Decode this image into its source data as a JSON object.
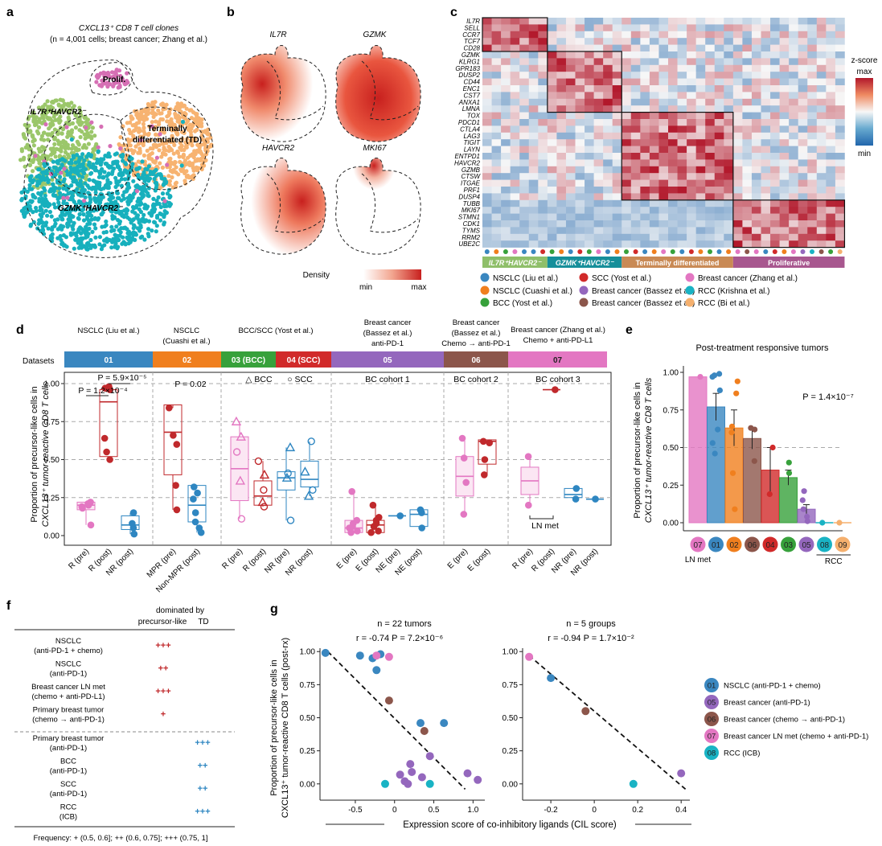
{
  "colors": {
    "d01": "#3a87c0",
    "d02": "#f07f1e",
    "d03": "#37a13b",
    "d04": "#d12a2a",
    "d05": "#9467bd",
    "d06": "#8c564b",
    "d07": "#e377c2",
    "d08": "#19b3c4",
    "d09": "#f5b06e",
    "precursor": "#c0292c",
    "td": "#2e86c1",
    "umap_green": "#9bc76a",
    "umap_teal": "#17b0bd",
    "umap_orange": "#f7b371",
    "umap_pink": "#d66fb4",
    "dens_low": "#fbe3dc",
    "dens_high": "#c8201e",
    "z_low": "#2166ac",
    "z_mid": "#f7f7f7",
    "z_high": "#b2182b"
  },
  "panel_a": {
    "letter": "a",
    "title_line1": "CXCL13⁺ CD8 T cell clones",
    "title_line2": "(n = 4,001 cells; breast cancer; Zhang et al.)",
    "labels": {
      "prolif": "Prolif.",
      "il7r": "IL7R⁺HAVCR2⁻",
      "td_line1": "Terminally",
      "td_line2": "differentiated (TD)",
      "gzmk": "GZMK⁺HAVCR2⁻"
    }
  },
  "panel_b": {
    "letter": "b",
    "genes": [
      "IL7R",
      "GZMK",
      "HAVCR2",
      "MKI67"
    ],
    "legend": {
      "title": "Density",
      "min": "min",
      "max": "max"
    }
  },
  "panel_c": {
    "letter": "c",
    "genes": [
      "IL7R",
      "SELL",
      "CCR7",
      "TCF7",
      "CD28",
      "GZMK",
      "KLRG1",
      "GPR183",
      "DUSP2",
      "CD44",
      "ENC1",
      "CST7",
      "ANXA1",
      "LMNA",
      "TOX",
      "PDCD1",
      "CTLA4",
      "LAG3",
      "TIGIT",
      "LAYN",
      "ENTPD1",
      "HAVCR2",
      "GZMB",
      "CTSW",
      "ITGAE",
      "PRF1",
      "DUSP4",
      "TUBB",
      "MKI67",
      "STMN1",
      "CDK1",
      "TYMS",
      "RRM2",
      "UBE2C"
    ],
    "column_datasets": [
      1,
      2,
      3,
      7,
      1,
      1,
      4,
      3,
      2,
      1,
      4,
      3,
      7,
      1,
      2,
      3,
      4,
      1,
      2,
      7,
      3,
      1,
      4,
      2,
      3,
      1,
      2,
      7,
      6,
      7,
      1,
      4,
      2,
      7,
      5,
      8,
      6,
      3,
      9
    ],
    "groups": [
      {
        "label": "IL7R⁺HAVCR2⁻",
        "color": "#8fbf6a"
      },
      {
        "label": "GZMK⁺HAVCR2⁻",
        "color": "#168f9a"
      },
      {
        "label": "Terminally differentiated",
        "color": "#c98a55"
      },
      {
        "label": "Proliferative",
        "color": "#a8578f"
      }
    ],
    "zscore": {
      "title": "z-score",
      "max": "max",
      "min": "min"
    },
    "legend": [
      {
        "label": "NSCLC (Liu et al.)",
        "ds": 1
      },
      {
        "label": "SCC (Yost et al.)",
        "ds": 4
      },
      {
        "label": "Breast cancer (Zhang et al.)",
        "ds": 7
      },
      {
        "label": "NSCLC (Cuashi et al.)",
        "ds": 2
      },
      {
        "label": "Breast cancer (Bassez et al.)",
        "ds": 5
      },
      {
        "label": "RCC (Krishna et al.)",
        "ds": 8
      },
      {
        "label": "BCC (Yost et al.)",
        "ds": 3
      },
      {
        "label": "Breast cancer (Bassez et al.)",
        "ds": 6
      },
      {
        "label": "RCC (Bi et al.)",
        "ds": 9
      }
    ]
  },
  "panel_d": {
    "letter": "d",
    "datasets_label": "Datasets",
    "ylabel_line1": "Proportion of precursor-like cells in",
    "ylabel_line2": "CXCL13⁺ tumor-reactive CD8 T cells",
    "headers": [
      {
        "l1": "NSCLC (Liu et al.)",
        "l2": "",
        "l3": ""
      },
      {
        "l1": "NSCLC",
        "l2": "(Cuashi et al.)",
        "l3": ""
      },
      {
        "l1": "BCC/SCC (Yost et al.)",
        "l2": "",
        "l3": ""
      },
      {
        "l1": "Breast cancer",
        "l2": "(Bassez et al.)",
        "l3": "anti-PD-1"
      },
      {
        "l1": "Breast cancer",
        "l2": "(Bassez et al.)",
        "l3": "Chemo → anti-PD-1"
      },
      {
        "l1": "Breast cancer (Zhang et al.)",
        "l2": "Chemo + anti-PD-L1",
        "l3": ""
      }
    ],
    "bar_labels": [
      "01",
      "02",
      "03 (BCC)",
      "04 (SCC)",
      "05",
      "06",
      "07"
    ],
    "sub_labels": {
      "bcc": "△ BCC",
      "scc": "○ SCC",
      "c1": "BC cohort 1",
      "c2": "BC cohort 2",
      "c3": "BC cohort 3",
      "lnmet": "LN met"
    },
    "pvalues": {
      "p1": "P = 5.9×10⁻⁵",
      "p2": "P = 1.2×10⁻⁴",
      "p3": "P = 0.02"
    },
    "yticks": [
      "0.00",
      "0.25",
      "0.50",
      "0.75",
      "1.00"
    ]
  },
  "panel_e": {
    "letter": "e",
    "title": "Post-treatment responsive tumors",
    "ylabel_line1": "Proportion of precursor-like cells in",
    "ylabel_line2": "CXCL13⁺ tumor-reactive CD8 T cells",
    "pvalue": "P = 1.4×10⁻⁷",
    "lnmet": "LN met",
    "rcc": "RCC",
    "yticks": [
      "0.00",
      "0.25",
      "0.50",
      "0.75",
      "1.00"
    ]
  },
  "panel_f": {
    "letter": "f",
    "header_l1": "dominated by",
    "header_precursor": "precursor-like",
    "header_td": "TD",
    "rows": [
      {
        "l1": "NSCLC",
        "l2": "(anti-PD-1 + chemo)",
        "mark": "+++",
        "side": "p"
      },
      {
        "l1": "NSCLC",
        "l2": "(anti-PD-1)",
        "mark": "++",
        "side": "p"
      },
      {
        "l1": "Breast cancer LN met",
        "l2": "(chemo + anti-PD-L1)",
        "mark": "+++",
        "side": "p"
      },
      {
        "l1": "Primary breast tumor",
        "l2": "(chemo → anti-PD-1)",
        "mark": "+",
        "side": "p"
      },
      {
        "l1": "Primary breast tumor",
        "l2": "(anti-PD-1)",
        "mark": "+++",
        "side": "t"
      },
      {
        "l1": "BCC",
        "l2": "(anti-PD-1)",
        "mark": "++",
        "side": "t"
      },
      {
        "l1": "SCC",
        "l2": "(anti-PD-1)",
        "mark": "++",
        "side": "t"
      },
      {
        "l1": "RCC",
        "l2": "(ICB)",
        "mark": "+++",
        "side": "t"
      }
    ],
    "footer": "Frequency: + (0.5, 0.6]; ++ (0.6, 0.75]; +++ (0.75, 1]"
  },
  "panel_g": {
    "letter": "g",
    "ylabel_line1": "Proportion of precursor-like cells in",
    "ylabel_line2": "CXCL13⁺ tumor-reactive CD8 T cells (post-rx)",
    "xlabel": "Expression score of co-inhibitory ligands (CIL score)",
    "left": {
      "title": "n = 22 tumors",
      "stat": "r = -0.74   P = 7.2×10⁻⁶",
      "xticks": [
        "-0.5",
        "0",
        "0.5",
        "1.0"
      ]
    },
    "right": {
      "title": "n = 5 groups",
      "stat": "r = -0.94   P = 1.7×10⁻²",
      "xticks": [
        "-0.2",
        "0",
        "0.2",
        "0.4"
      ]
    },
    "yticks": [
      "0.00",
      "0.25",
      "0.50",
      "0.75",
      "1.00"
    ],
    "legend": [
      {
        "code": "01",
        "label": "NSCLC (anti-PD-1 + chemo)",
        "ds": 1
      },
      {
        "code": "05",
        "label": "Breast cancer (anti-PD-1)",
        "ds": 5
      },
      {
        "code": "06",
        "label": "Breast cancer (chemo → anti-PD-1)",
        "ds": 6
      },
      {
        "code": "07",
        "label": "Breast cancer LN met (chemo + anti-PD-1)",
        "ds": 7
      },
      {
        "code": "08",
        "label": "RCC (ICB)",
        "ds": 8
      }
    ]
  },
  "chart_data": [
    {
      "type": "box",
      "panel": "d",
      "ylim": [
        0,
        1
      ],
      "groups": [
        {
          "label": "R (pre)",
          "dataset": "01",
          "values": [
            0.19,
            0.2,
            0.21,
            0.22,
            0.18,
            0.07
          ],
          "box": [
            0.17,
            0.2,
            0.22
          ]
        },
        {
          "label": "R (post)",
          "dataset": "01",
          "values": [
            0.98,
            0.97,
            0.96,
            0.64,
            0.55,
            0.5
          ],
          "box": [
            0.52,
            0.88,
            0.96
          ]
        },
        {
          "label": "NR (post)",
          "dataset": "01",
          "values": [
            0.15,
            0.08,
            0.05,
            0.01
          ],
          "box": [
            0.04,
            0.07,
            0.13
          ]
        },
        {
          "label": "MPR (pre)",
          "dataset": "02",
          "values": [
            0.84,
            0.66,
            0.6,
            0.33,
            0.17
          ],
          "box": [
            0.4,
            0.68,
            0.86
          ]
        },
        {
          "label": "Non-MPR (post)",
          "dataset": "02",
          "values": [
            0.32,
            0.24,
            0.15,
            0.09,
            0.05,
            0.02,
            0.28
          ],
          "box": [
            0.09,
            0.2,
            0.33
          ]
        },
        {
          "label": "R (pre)",
          "dataset": "03/04",
          "values": [
            0.75,
            0.55,
            0.36,
            0.11,
            0.65
          ],
          "box": [
            0.23,
            0.44,
            0.65
          ]
        },
        {
          "label": "R (post)",
          "dataset": "03/04",
          "values": [
            0.49,
            0.4,
            0.3,
            0.22,
            0.19
          ],
          "box": [
            0.2,
            0.26,
            0.36
          ]
        },
        {
          "label": "NR (pre)",
          "dataset": "03/04",
          "values": [
            0.58,
            0.41,
            0.38,
            0.1
          ],
          "box": [
            0.3,
            0.38,
            0.42
          ]
        },
        {
          "label": "NR (post)",
          "dataset": "03/04",
          "values": [
            0.62,
            0.42,
            0.3,
            0.26
          ],
          "box": [
            0.32,
            0.37,
            0.49
          ]
        },
        {
          "label": "E (pre)",
          "dataset": "05",
          "values": [
            0.29,
            0.1,
            0.05,
            0.03,
            0.02,
            0.06,
            0.08
          ],
          "box": [
            0.02,
            0.05,
            0.1
          ]
        },
        {
          "label": "E (post)",
          "dataset": "05",
          "values": [
            0.2,
            0.12,
            0.08,
            0.06,
            0.03,
            0.02,
            0.1
          ],
          "box": [
            0.02,
            0.07,
            0.1
          ]
        },
        {
          "label": "NE (pre)",
          "dataset": "05",
          "values": [
            0.13
          ],
          "box": [
            0.13,
            0.13,
            0.13
          ]
        },
        {
          "label": "NE (post)",
          "dataset": "05",
          "values": [
            0.17,
            0.15,
            0.05
          ],
          "box": [
            0.06,
            0.14,
            0.17
          ]
        },
        {
          "label": "E (pre)",
          "dataset": "06",
          "values": [
            0.64,
            0.51,
            0.35,
            0.14
          ],
          "box": [
            0.26,
            0.39,
            0.52
          ]
        },
        {
          "label": "E (post)",
          "dataset": "06",
          "values": [
            0.62,
            0.61,
            0.5,
            0.4
          ],
          "box": [
            0.47,
            0.62,
            0.63
          ]
        },
        {
          "label": "R (pre)",
          "dataset": "07",
          "values": [
            0.52,
            0.2
          ],
          "box": [
            0.27,
            0.36,
            0.45
          ]
        },
        {
          "label": "R (post)",
          "dataset": "07",
          "values": [
            0.96
          ],
          "box": [
            0.96,
            0.96,
            0.96
          ]
        },
        {
          "label": "NR (pre)",
          "dataset": "07",
          "values": [
            0.31,
            0.24
          ],
          "box": [
            0.25,
            0.27,
            0.31
          ]
        },
        {
          "label": "NR (post)",
          "dataset": "07",
          "values": [
            0.24
          ],
          "box": [
            0.24,
            0.24,
            0.24
          ]
        }
      ]
    },
    {
      "type": "bar",
      "panel": "e",
      "title": "Post-treatment responsive tumors",
      "ylim": [
        0,
        1
      ],
      "categories": [
        "07",
        "01",
        "02",
        "06",
        "04",
        "03",
        "05",
        "08",
        "09"
      ],
      "values": [
        0.97,
        0.77,
        0.63,
        0.56,
        0.35,
        0.3,
        0.09,
        0.0,
        0.0
      ],
      "errors": [
        0.0,
        0.09,
        0.12,
        0.07,
        0.15,
        0.05,
        0.03,
        0.0,
        0.0
      ],
      "points": [
        [
          0.97
        ],
        [
          0.99,
          0.98,
          0.97,
          0.88,
          0.62,
          0.53,
          0.46
        ],
        [
          0.94,
          0.86,
          0.64,
          0.6,
          0.33,
          0.09
        ],
        [
          0.63,
          0.62,
          0.41
        ],
        [
          0.5,
          0.19
        ],
        [
          0.4,
          0.33
        ],
        [
          0.21,
          0.15,
          0.09,
          0.04,
          0.01
        ],
        [
          0.0
        ],
        [
          0.0
        ]
      ]
    },
    {
      "type": "scatter",
      "panel": "g-left",
      "title": "n = 22 tumors",
      "xlim": [
        -0.95,
        1.15
      ],
      "ylim": [
        -0.05,
        1.05
      ],
      "points": [
        {
          "x": -0.88,
          "y": 0.99,
          "ds": 1
        },
        {
          "x": -0.44,
          "y": 0.97,
          "ds": 1
        },
        {
          "x": -0.28,
          "y": 0.95,
          "ds": 1
        },
        {
          "x": -0.18,
          "y": 0.98,
          "ds": 1
        },
        {
          "x": -0.23,
          "y": 0.97,
          "ds": 7
        },
        {
          "x": -0.07,
          "y": 0.96,
          "ds": 7
        },
        {
          "x": -0.23,
          "y": 0.86,
          "ds": 1
        },
        {
          "x": -0.07,
          "y": 0.63,
          "ds": 6
        },
        {
          "x": 0.33,
          "y": 0.46,
          "ds": 1
        },
        {
          "x": 0.63,
          "y": 0.46,
          "ds": 1
        },
        {
          "x": 0.38,
          "y": 0.4,
          "ds": 6
        },
        {
          "x": 0.45,
          "y": 0.21,
          "ds": 5
        },
        {
          "x": 0.2,
          "y": 0.15,
          "ds": 5
        },
        {
          "x": 0.22,
          "y": 0.09,
          "ds": 5
        },
        {
          "x": 0.07,
          "y": 0.07,
          "ds": 5
        },
        {
          "x": 0.13,
          "y": 0.02,
          "ds": 5
        },
        {
          "x": 0.17,
          "y": 0.0,
          "ds": 5
        },
        {
          "x": 0.93,
          "y": 0.08,
          "ds": 5
        },
        {
          "x": 1.06,
          "y": 0.03,
          "ds": 5
        },
        {
          "x": 0.35,
          "y": 0.05,
          "ds": 5
        },
        {
          "x": -0.12,
          "y": 0.0,
          "ds": 8
        },
        {
          "x": 0.45,
          "y": 0.0,
          "ds": 8
        }
      ],
      "fit": [
        [
          -0.85,
          1.0
        ],
        [
          0.9,
          -0.04
        ]
      ]
    },
    {
      "type": "scatter",
      "panel": "g-right",
      "title": "n = 5 groups",
      "xlim": [
        -0.33,
        0.44
      ],
      "ylim": [
        -0.05,
        1.05
      ],
      "points": [
        {
          "x": -0.3,
          "y": 0.96,
          "ds": 7
        },
        {
          "x": -0.2,
          "y": 0.8,
          "ds": 1
        },
        {
          "x": -0.04,
          "y": 0.55,
          "ds": 6
        },
        {
          "x": 0.18,
          "y": 0.0,
          "ds": 8
        },
        {
          "x": 0.4,
          "y": 0.08,
          "ds": 5
        }
      ],
      "fit": [
        [
          -0.3,
          0.97
        ],
        [
          0.42,
          -0.04
        ]
      ]
    }
  ]
}
